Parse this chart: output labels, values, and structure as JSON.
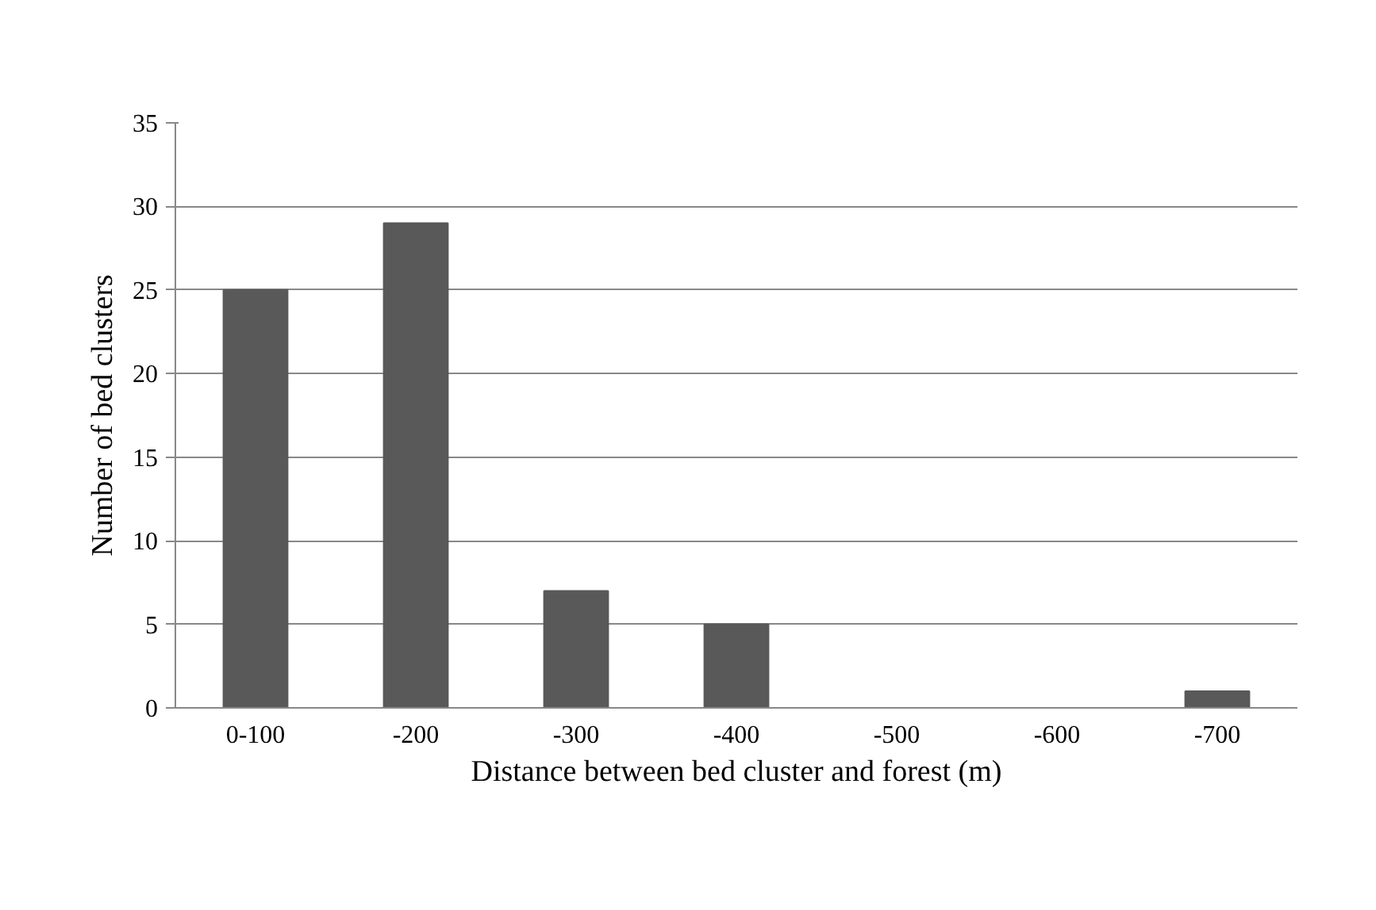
{
  "chart_data": {
    "type": "bar",
    "xlabel": "Distance between bed cluster and forest (m)",
    "ylabel": "Number of bed clusters",
    "categories": [
      "0-100",
      "-200",
      "-300",
      "-400",
      "-500",
      "-600",
      "-700"
    ],
    "values": [
      25,
      29,
      7,
      5,
      0,
      0,
      1
    ],
    "color": "#595959",
    "ylim": [
      0,
      35
    ],
    "yticks": [
      0,
      5,
      10,
      15,
      20,
      25,
      30,
      35
    ],
    "grid": "y"
  }
}
